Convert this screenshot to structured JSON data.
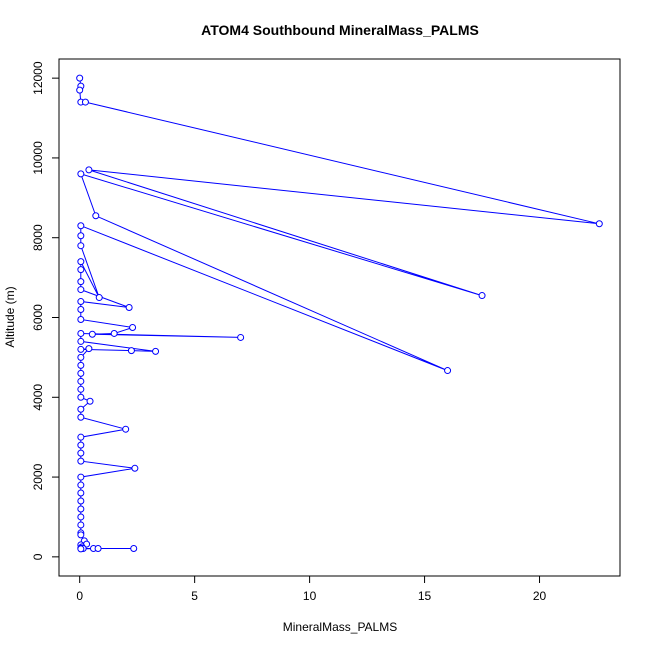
{
  "chart_data": {
    "type": "scatter",
    "title": "ATOM4 Southbound MineralMass_PALMS",
    "xlabel": "MineralMass_PALMS",
    "ylabel": "Altitude (m)",
    "xlim": [
      -0.9,
      23.5
    ],
    "ylim": [
      -480,
      12480
    ],
    "xticks": [
      0,
      5,
      10,
      15,
      20
    ],
    "yticks": [
      0,
      2000,
      4000,
      6000,
      8000,
      10000,
      12000
    ],
    "grid": false,
    "legend": "none",
    "series_color": "#0000ff",
    "points": [
      [
        0.0,
        12000
      ],
      [
        0.05,
        11800
      ],
      [
        0.0,
        11700
      ],
      [
        0.05,
        11400
      ],
      [
        0.25,
        11400
      ],
      [
        22.6,
        8350
      ],
      [
        0.4,
        9700
      ],
      [
        17.5,
        6550
      ],
      [
        0.05,
        9600
      ],
      [
        0.7,
        8550
      ],
      [
        16.0,
        4670
      ],
      [
        0.05,
        8300
      ],
      [
        0.05,
        8050
      ],
      [
        0.05,
        7800
      ],
      [
        0.85,
        6500
      ],
      [
        0.05,
        7400
      ],
      [
        0.05,
        7200
      ],
      [
        0.05,
        6900
      ],
      [
        0.05,
        6700
      ],
      [
        2.15,
        6250
      ],
      [
        0.05,
        6400
      ],
      [
        0.05,
        6200
      ],
      [
        0.05,
        5950
      ],
      [
        2.3,
        5750
      ],
      [
        1.5,
        5600
      ],
      [
        0.55,
        5580
      ],
      [
        7.0,
        5500
      ],
      [
        0.05,
        5600
      ],
      [
        0.05,
        5400
      ],
      [
        3.3,
        5150
      ],
      [
        2.25,
        5170
      ],
      [
        0.05,
        5200
      ],
      [
        0.4,
        5220
      ],
      [
        0.05,
        5000
      ],
      [
        0.05,
        4800
      ],
      [
        0.05,
        4600
      ],
      [
        0.05,
        4400
      ],
      [
        0.05,
        4200
      ],
      [
        0.05,
        4000
      ],
      [
        0.45,
        3900
      ],
      [
        0.05,
        3700
      ],
      [
        0.05,
        3500
      ],
      [
        2.0,
        3200
      ],
      [
        0.05,
        3000
      ],
      [
        0.05,
        2800
      ],
      [
        0.05,
        2600
      ],
      [
        0.05,
        2400
      ],
      [
        2.4,
        2220
      ],
      [
        0.05,
        2000
      ],
      [
        0.05,
        1800
      ],
      [
        0.05,
        1600
      ],
      [
        0.05,
        1400
      ],
      [
        0.05,
        1200
      ],
      [
        0.05,
        1000
      ],
      [
        0.05,
        800
      ],
      [
        0.05,
        600
      ],
      [
        0.05,
        550
      ],
      [
        0.2,
        400
      ],
      [
        0.05,
        300
      ],
      [
        0.3,
        320
      ],
      [
        0.1,
        250
      ],
      [
        0.05,
        220
      ],
      [
        0.15,
        210
      ],
      [
        2.35,
        210
      ],
      [
        0.6,
        210
      ],
      [
        0.8,
        210
      ],
      [
        0.05,
        200
      ]
    ]
  }
}
